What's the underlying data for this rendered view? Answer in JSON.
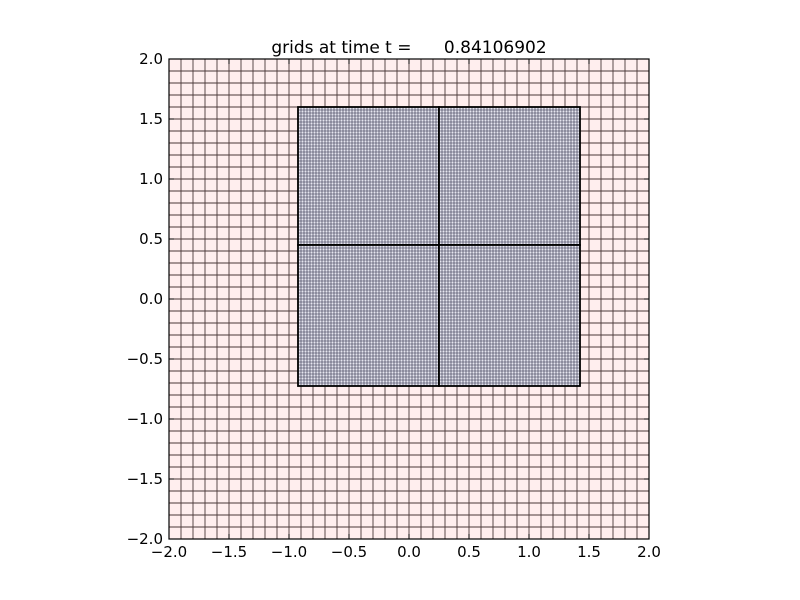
{
  "chart_data": {
    "type": "grid-patches",
    "title": "grids at time t =      0.84106902",
    "xlim": [
      -2.0,
      2.0
    ],
    "ylim": [
      -2.0,
      2.0
    ],
    "xticks": [
      "−2.0",
      "−1.5",
      "−1.0",
      "−0.5",
      "0.0",
      "0.5",
      "1.0",
      "1.5",
      "2.0"
    ],
    "yticks": [
      "−2.0",
      "−1.5",
      "−1.0",
      "−0.5",
      "0.0",
      "0.5",
      "1.0",
      "1.5",
      "2.0"
    ],
    "levels": [
      {
        "level": 1,
        "dx": 0.1,
        "fill": "#ffeeee",
        "line": "#4a3838",
        "patches": [
          {
            "x": [
              -2.0,
              2.0
            ],
            "y": [
              -2.0,
              2.0
            ]
          }
        ]
      },
      {
        "level": 2,
        "dx": 0.025,
        "fill": "#e6e6f0",
        "line": "#2a2a44",
        "patches": [
          {
            "x": [
              -0.925,
              0.25
            ],
            "y": [
              0.45,
              1.6
            ]
          },
          {
            "x": [
              0.25,
              1.425
            ],
            "y": [
              0.45,
              1.6
            ]
          },
          {
            "x": [
              -0.925,
              0.25
            ],
            "y": [
              -0.725,
              0.45
            ]
          },
          {
            "x": [
              0.25,
              1.425
            ],
            "y": [
              -0.725,
              0.45
            ]
          }
        ]
      }
    ]
  }
}
